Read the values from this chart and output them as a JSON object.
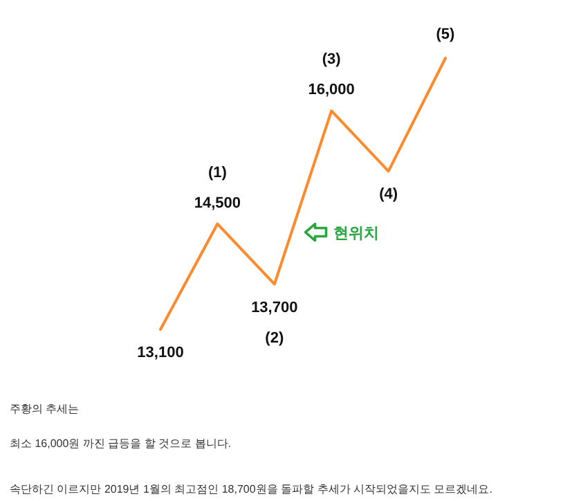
{
  "chart_data": {
    "type": "line",
    "categories": [
      null,
      null,
      null,
      null,
      null,
      null
    ],
    "series": [
      {
        "color": "#ff8a2b",
        "values": [
          13100,
          14500,
          13700,
          16000,
          15200,
          16700
        ],
        "value_labels": [
          "13,100",
          "14,500",
          "13,700",
          "16,000",
          null,
          null
        ]
      }
    ],
    "marker": "none",
    "line_style": "solid",
    "annotations": [
      "(1)",
      "(2)",
      "(3)",
      "(4)",
      "(5)",
      "현위치",
      "주황의 추세는",
      "최소 16,000원 까진 급등을 할 것으로 봅니다.",
      "속단하긴 이르지만 2019년 1월의 최고점인 18,700원을 돌파할 추세가 시작되었을지도 모르겠네요."
    ]
  }
}
